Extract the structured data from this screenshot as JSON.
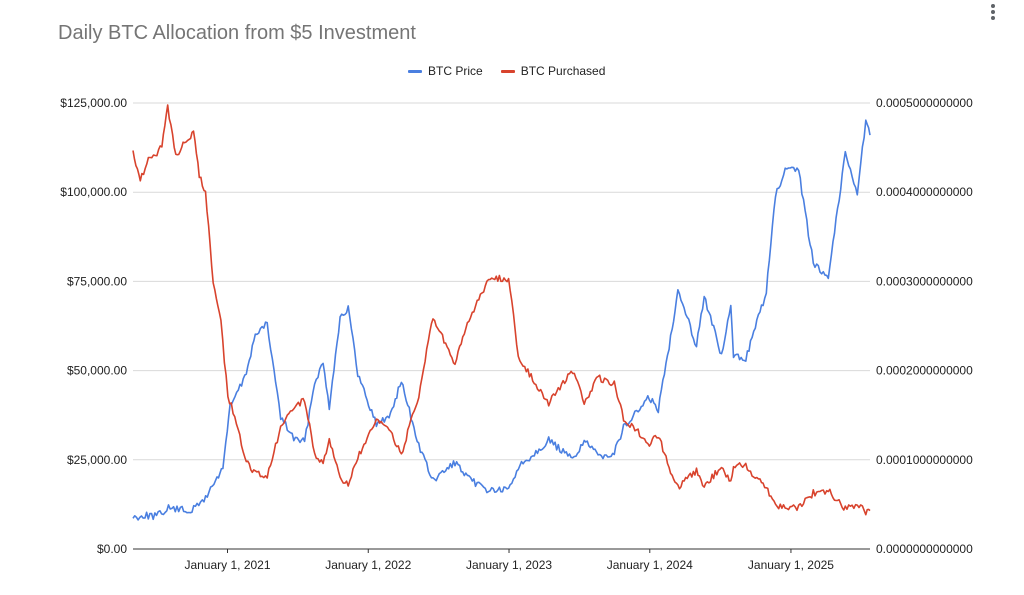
{
  "chart_data": {
    "type": "line",
    "title": "Daily BTC Allocation from $5 Investment",
    "xlabel": "",
    "ylabel_left": "",
    "ylabel_right": "",
    "legend_position": "top-center",
    "grid": true,
    "x_range": [
      "2020-05-01",
      "2025-07-25"
    ],
    "x_ticks": [
      {
        "date": "2021-01-01",
        "label": "January 1, 2021"
      },
      {
        "date": "2022-01-01",
        "label": "January 1, 2022"
      },
      {
        "date": "2023-01-01",
        "label": "January 1, 2023"
      },
      {
        "date": "2024-01-01",
        "label": "January 1, 2024"
      },
      {
        "date": "2025-01-01",
        "label": "January 1, 2025"
      }
    ],
    "y_left": {
      "range": [
        0,
        125000
      ],
      "ticks": [
        0,
        25000,
        50000,
        75000,
        100000,
        125000
      ],
      "tick_labels": [
        "$0.00",
        "$25,000.00",
        "$50,000.00",
        "$75,000.00",
        "$100,000.00",
        "$125,000.00"
      ]
    },
    "y_right": {
      "range": [
        0,
        0.0005
      ],
      "ticks": [
        0,
        0.0001,
        0.0002,
        0.0003,
        0.0004,
        0.0005
      ],
      "tick_labels": [
        "0.0000000000000",
        "0.0001000000000",
        "0.0002000000000",
        "0.0003000000000",
        "0.0004000000000",
        "0.0005000000000"
      ]
    },
    "series": [
      {
        "name": "BTC Price",
        "color": "#4a7fe0",
        "axis": "left",
        "points": [
          [
            "2020-05-01",
            8800
          ],
          [
            "2020-06-01",
            9500
          ],
          [
            "2020-07-01",
            9200
          ],
          [
            "2020-08-01",
            11500
          ],
          [
            "2020-09-01",
            11000
          ],
          [
            "2020-10-01",
            10800
          ],
          [
            "2020-11-01",
            13800
          ],
          [
            "2020-12-01",
            19000
          ],
          [
            "2020-12-20",
            23000
          ],
          [
            "2021-01-08",
            40000
          ],
          [
            "2021-02-15",
            48000
          ],
          [
            "2021-03-14",
            60000
          ],
          [
            "2021-04-14",
            63000
          ],
          [
            "2021-05-19",
            37000
          ],
          [
            "2021-06-22",
            31000
          ],
          [
            "2021-07-20",
            30000
          ],
          [
            "2021-08-15",
            47000
          ],
          [
            "2021-09-06",
            52000
          ],
          [
            "2021-09-22",
            40000
          ],
          [
            "2021-10-20",
            65000
          ],
          [
            "2021-11-10",
            67500
          ],
          [
            "2021-12-05",
            49000
          ],
          [
            "2022-01-22",
            35000
          ],
          [
            "2022-02-24",
            37000
          ],
          [
            "2022-03-28",
            47000
          ],
          [
            "2022-05-12",
            29000
          ],
          [
            "2022-06-18",
            19000
          ],
          [
            "2022-08-14",
            24300
          ],
          [
            "2022-09-15",
            19800
          ],
          [
            "2022-11-09",
            16500
          ],
          [
            "2022-12-31",
            16500
          ],
          [
            "2023-01-25",
            23000
          ],
          [
            "2023-03-20",
            28000
          ],
          [
            "2023-04-14",
            30500
          ],
          [
            "2023-06-15",
            25000
          ],
          [
            "2023-07-15",
            30500
          ],
          [
            "2023-08-20",
            26000
          ],
          [
            "2023-10-01",
            27000
          ],
          [
            "2023-10-25",
            34000
          ],
          [
            "2023-12-31",
            42500
          ],
          [
            "2024-01-23",
            39000
          ],
          [
            "2024-02-28",
            62000
          ],
          [
            "2024-03-14",
            73000
          ],
          [
            "2024-05-01",
            57000
          ],
          [
            "2024-05-21",
            71000
          ],
          [
            "2024-07-05",
            54000
          ],
          [
            "2024-07-29",
            68000
          ],
          [
            "2024-08-05",
            54000
          ],
          [
            "2024-09-06",
            53500
          ],
          [
            "2024-10-29",
            72000
          ],
          [
            "2024-11-22",
            99000
          ],
          [
            "2024-12-17",
            106000
          ],
          [
            "2025-01-21",
            106000
          ],
          [
            "2025-02-28",
            80000
          ],
          [
            "2025-04-08",
            76500
          ],
          [
            "2025-05-22",
            111000
          ],
          [
            "2025-06-22",
            100000
          ],
          [
            "2025-07-14",
            120000
          ],
          [
            "2025-07-25",
            116000
          ]
        ]
      },
      {
        "name": "BTC Purchased",
        "color": "#d8432d",
        "axis": "right",
        "points": [
          [
            "2020-05-01",
            0.000445
          ],
          [
            "2020-05-20",
            0.000415
          ],
          [
            "2020-06-10",
            0.000435
          ],
          [
            "2020-07-15",
            0.00045
          ],
          [
            "2020-07-30",
            0.000495
          ],
          [
            "2020-08-20",
            0.00044
          ],
          [
            "2020-09-08",
            0.000455
          ],
          [
            "2020-10-05",
            0.000465
          ],
          [
            "2020-10-20",
            0.00042
          ],
          [
            "2020-11-05",
            0.0004
          ],
          [
            "2020-11-25",
            0.0003
          ],
          [
            "2020-12-15",
            0.000255
          ],
          [
            "2021-01-02",
            0.00017
          ],
          [
            "2021-01-20",
            0.00015
          ],
          [
            "2021-02-15",
            0.0001
          ],
          [
            "2021-03-14",
            8.5e-05
          ],
          [
            "2021-04-14",
            8e-05
          ],
          [
            "2021-05-19",
            0.000135
          ],
          [
            "2021-06-22",
            0.00016
          ],
          [
            "2021-07-20",
            0.000167
          ],
          [
            "2021-08-15",
            0.000106
          ],
          [
            "2021-09-06",
            9.6e-05
          ],
          [
            "2021-09-22",
            0.000125
          ],
          [
            "2021-10-20",
            7.7e-05
          ],
          [
            "2021-11-10",
            7.4e-05
          ],
          [
            "2021-12-05",
            0.000102
          ],
          [
            "2022-01-22",
            0.000143
          ],
          [
            "2022-02-24",
            0.000135
          ],
          [
            "2022-03-28",
            0.000106
          ],
          [
            "2022-05-12",
            0.000172
          ],
          [
            "2022-06-18",
            0.00026
          ],
          [
            "2022-08-14",
            0.000206
          ],
          [
            "2022-09-15",
            0.000253
          ],
          [
            "2022-11-09",
            0.000303
          ],
          [
            "2022-12-31",
            0.000303
          ],
          [
            "2023-01-25",
            0.000217
          ],
          [
            "2023-03-20",
            0.000179
          ],
          [
            "2023-04-14",
            0.000164
          ],
          [
            "2023-06-15",
            0.0002
          ],
          [
            "2023-07-15",
            0.000164
          ],
          [
            "2023-08-20",
            0.000192
          ],
          [
            "2023-10-01",
            0.000185
          ],
          [
            "2023-10-25",
            0.000147
          ],
          [
            "2023-12-31",
            0.000118
          ],
          [
            "2024-01-23",
            0.000128
          ],
          [
            "2024-02-28",
            8.1e-05
          ],
          [
            "2024-03-14",
            6.8e-05
          ],
          [
            "2024-05-01",
            8.8e-05
          ],
          [
            "2024-05-21",
            7e-05
          ],
          [
            "2024-07-05",
            9.3e-05
          ],
          [
            "2024-07-29",
            7.4e-05
          ],
          [
            "2024-08-05",
            9.3e-05
          ],
          [
            "2024-09-06",
            9.3e-05
          ],
          [
            "2024-10-29",
            6.9e-05
          ],
          [
            "2024-11-22",
            5e-05
          ],
          [
            "2024-12-17",
            4.7e-05
          ],
          [
            "2025-01-21",
            4.7e-05
          ],
          [
            "2025-02-28",
            6.3e-05
          ],
          [
            "2025-04-08",
            6.5e-05
          ],
          [
            "2025-05-22",
            4.5e-05
          ],
          [
            "2025-06-22",
            5e-05
          ],
          [
            "2025-07-14",
            4.2e-05
          ],
          [
            "2025-07-25",
            4.3e-05
          ]
        ]
      }
    ]
  }
}
